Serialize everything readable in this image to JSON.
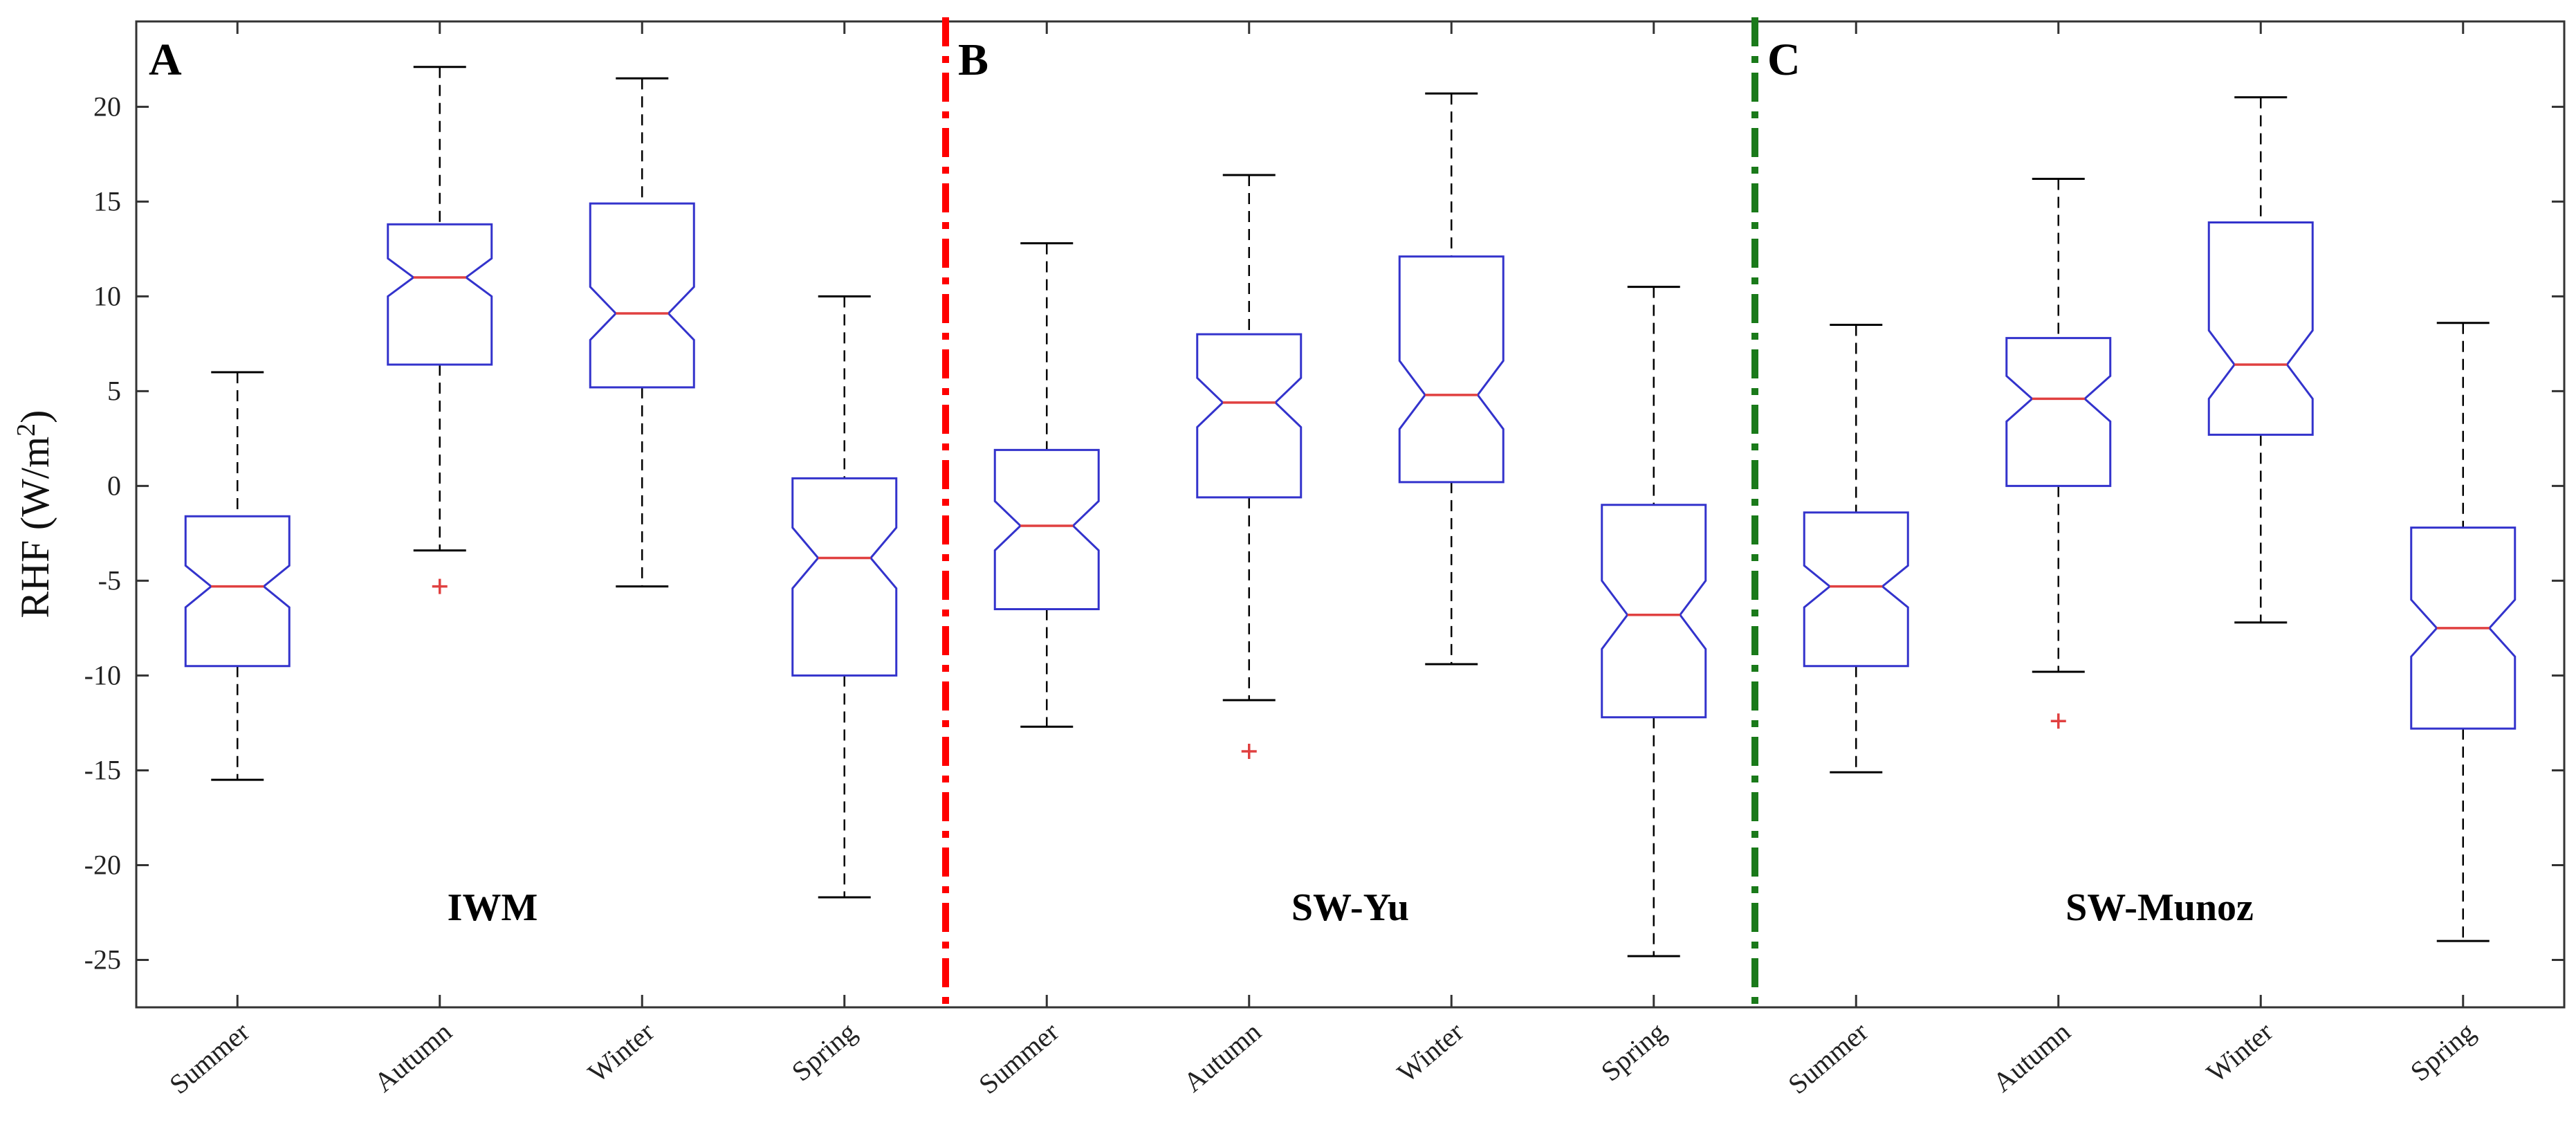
{
  "chart_data": {
    "type": "boxplot",
    "notched": true,
    "ylabel": "RHF (W/m",
    "ylabel_superscript": "2",
    "ylabel_suffix": ")",
    "ylim": [
      -27.5,
      24.5
    ],
    "yticks": [
      -25,
      -20,
      -15,
      -10,
      -5,
      0,
      5,
      10,
      15,
      20
    ],
    "categories": [
      "Summer",
      "Autumn",
      "Winter",
      "Spring",
      "Summer",
      "Autumn",
      "Winter",
      "Spring",
      "Summer",
      "Autumn",
      "Winter",
      "Spring"
    ],
    "panels": [
      {
        "letter": "A",
        "method": "IWM",
        "boxes": [
          {
            "season": "Summer",
            "whisker_low": -15.5,
            "q1": -9.5,
            "median": -5.3,
            "q3": -1.6,
            "whisker_high": 6.0,
            "notch_low": -6.4,
            "notch_high": -4.2,
            "outliers": []
          },
          {
            "season": "Autumn",
            "whisker_low": -3.4,
            "q1": 6.4,
            "median": 11.0,
            "q3": 13.8,
            "whisker_high": 22.1,
            "notch_low": 10.0,
            "notch_high": 12.0,
            "outliers": [
              -5.3
            ]
          },
          {
            "season": "Winter",
            "whisker_low": -5.3,
            "q1": 5.2,
            "median": 9.1,
            "q3": 14.9,
            "whisker_high": 21.5,
            "notch_low": 7.7,
            "notch_high": 10.5,
            "outliers": []
          },
          {
            "season": "Spring",
            "whisker_low": -21.7,
            "q1": -10.0,
            "median": -3.8,
            "q3": 0.4,
            "whisker_high": 10.0,
            "notch_low": -5.4,
            "notch_high": -2.2,
            "outliers": []
          }
        ]
      },
      {
        "letter": "B",
        "method": "SW-Yu",
        "boxes": [
          {
            "season": "Summer",
            "whisker_low": -12.7,
            "q1": -6.5,
            "median": -2.1,
            "q3": 1.9,
            "whisker_high": 12.8,
            "notch_low": -3.4,
            "notch_high": -0.8,
            "outliers": []
          },
          {
            "season": "Autumn",
            "whisker_low": -11.3,
            "q1": -0.6,
            "median": 4.4,
            "q3": 8.0,
            "whisker_high": 16.4,
            "notch_low": 3.1,
            "notch_high": 5.7,
            "outliers": [
              -14.0
            ]
          },
          {
            "season": "Winter",
            "whisker_low": -9.4,
            "q1": 0.2,
            "median": 4.8,
            "q3": 12.1,
            "whisker_high": 20.7,
            "notch_low": 3.0,
            "notch_high": 6.6,
            "outliers": []
          },
          {
            "season": "Spring",
            "whisker_low": -24.8,
            "q1": -12.2,
            "median": -6.8,
            "q3": -1.0,
            "whisker_high": 10.5,
            "notch_low": -8.6,
            "notch_high": -5.0,
            "outliers": []
          }
        ]
      },
      {
        "letter": "C",
        "method": "SW-Munoz",
        "boxes": [
          {
            "season": "Summer",
            "whisker_low": -15.1,
            "q1": -9.5,
            "median": -5.3,
            "q3": -1.4,
            "whisker_high": 8.5,
            "notch_low": -6.4,
            "notch_high": -4.2,
            "outliers": []
          },
          {
            "season": "Autumn",
            "whisker_low": -9.8,
            "q1": 0.0,
            "median": 4.6,
            "q3": 7.8,
            "whisker_high": 16.2,
            "notch_low": 3.4,
            "notch_high": 5.8,
            "outliers": [
              -12.4
            ]
          },
          {
            "season": "Winter",
            "whisker_low": -7.2,
            "q1": 2.7,
            "median": 6.4,
            "q3": 13.9,
            "whisker_high": 20.5,
            "notch_low": 4.6,
            "notch_high": 8.2,
            "outliers": []
          },
          {
            "season": "Spring",
            "whisker_low": -24.0,
            "q1": -12.8,
            "median": -7.5,
            "q3": -2.2,
            "whisker_high": 8.6,
            "notch_low": -9.0,
            "notch_high": -6.0,
            "outliers": []
          }
        ]
      }
    ],
    "divider_colors": [
      "#ff0000",
      "#1a7a1a"
    ],
    "box_color": "#3333cc",
    "median_color": "#e04040",
    "whisker_color": "#000000",
    "outlier_color": "#e04040"
  }
}
